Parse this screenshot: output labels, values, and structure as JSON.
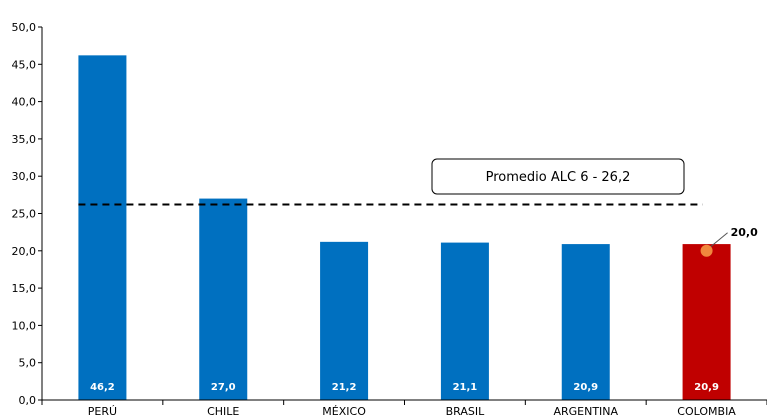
{
  "chart_data": {
    "type": "bar",
    "categories": [
      "PERÚ",
      "CHILE",
      "MÉXICO",
      "BRASIL",
      "ARGENTINA",
      "COLOMBIA"
    ],
    "values": [
      46.2,
      27.0,
      21.2,
      21.1,
      20.9,
      20.9
    ],
    "value_labels": [
      "46,2",
      "27,0",
      "21,2",
      "21,1",
      "20,9",
      "20,9"
    ],
    "bar_colors": [
      "#0070C0",
      "#0070C0",
      "#0070C0",
      "#0070C0",
      "#0070C0",
      "#C00000"
    ],
    "ylim": [
      0,
      50
    ],
    "yticks": [
      0,
      5,
      10,
      15,
      20,
      25,
      30,
      35,
      40,
      45,
      50
    ],
    "ytick_labels": [
      "0,0",
      "5,0",
      "10,0",
      "15,0",
      "20,0",
      "25,0",
      "30,0",
      "35,0",
      "40,0",
      "45,0",
      "50,0"
    ],
    "reference_line": {
      "value": 26.2,
      "label": "Promedio ALC 6 - 26,2",
      "style": "dashed"
    },
    "marker": {
      "category": "COLOMBIA",
      "value": 20.0,
      "label": "20,0",
      "color": "#F0883E"
    },
    "grid": false,
    "legend": "none"
  }
}
